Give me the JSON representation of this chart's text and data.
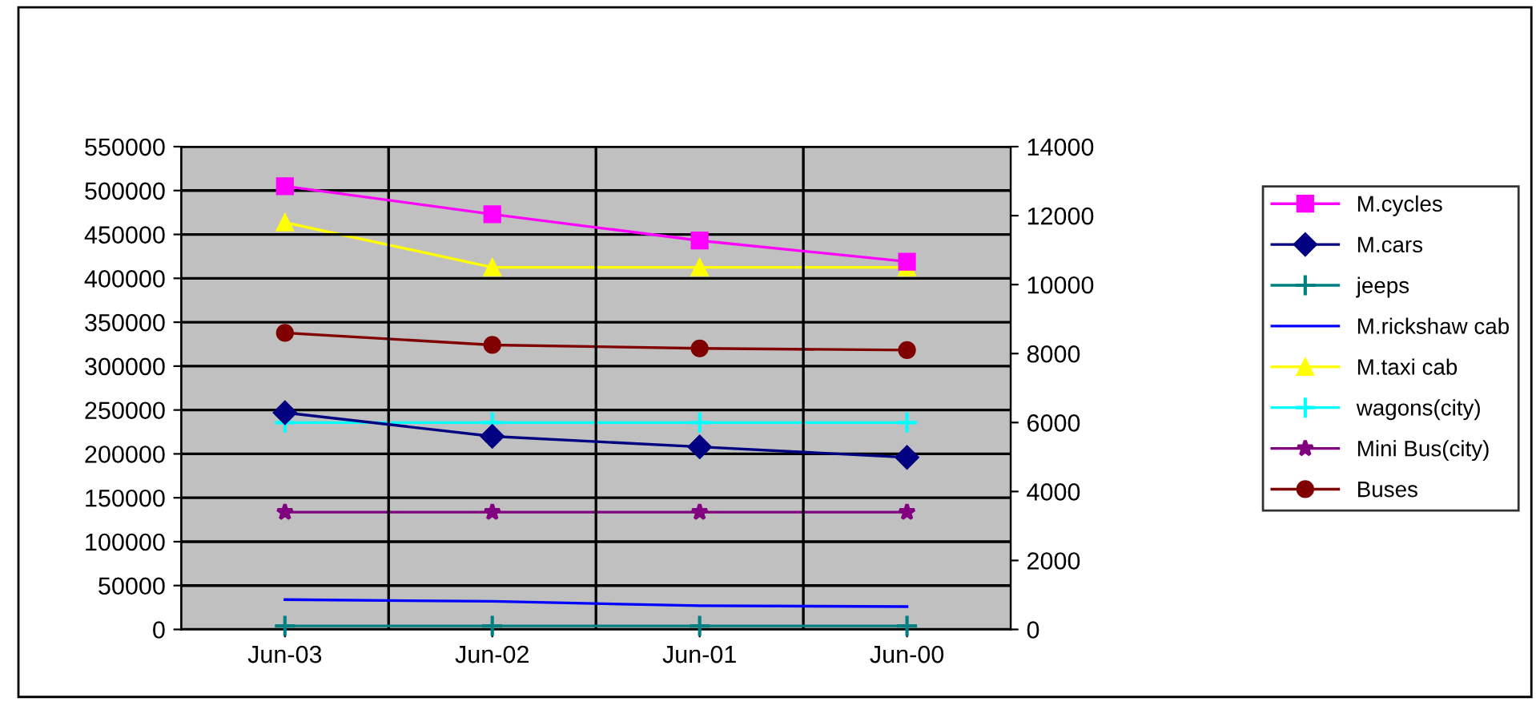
{
  "chart_data": {
    "type": "line",
    "categories": [
      "Jun-03",
      "Jun-02",
      "Jun-01",
      "Jun-00"
    ],
    "series": [
      {
        "name": "M.cycles",
        "color": "#ff00ff",
        "marker": "square",
        "values": [
          505000,
          473000,
          443000,
          419000
        ]
      },
      {
        "name": "M.cars",
        "color": "#000080",
        "marker": "diamond",
        "values": [
          247000,
          220000,
          208000,
          196000
        ]
      },
      {
        "name": "jeeps",
        "color": "#008080",
        "marker": "cross",
        "values": [
          4000,
          4000,
          4000,
          4000
        ]
      },
      {
        "name": "M.rickshaw cab",
        "color": "#0000ff",
        "marker": "none",
        "values": [
          34000,
          32000,
          27000,
          26000
        ]
      },
      {
        "name": "M.taxi cab",
        "color": "#ffff00",
        "marker": "triangle",
        "axis": "y2",
        "values": [
          11800,
          10500,
          10500,
          10500
        ]
      },
      {
        "name": "wagons(city)",
        "color": "#00ffff",
        "marker": "cross",
        "axis": "y2",
        "values": [
          6000,
          6000,
          6000,
          6000
        ]
      },
      {
        "name": "Mini Bus(city)",
        "color": "#800080",
        "marker": "star",
        "axis": "y2",
        "values": [
          3400,
          3400,
          3400,
          3400
        ]
      },
      {
        "name": "Buses",
        "color": "#800000",
        "marker": "circle",
        "axis": "y2",
        "values": [
          8600,
          8250,
          8150,
          8100
        ]
      }
    ],
    "ylim": [
      0,
      550000
    ],
    "yticks": [
      0,
      50000,
      100000,
      150000,
      200000,
      250000,
      300000,
      350000,
      400000,
      450000,
      500000,
      550000
    ],
    "y2lim": [
      0,
      14000
    ],
    "y2ticks": [
      0,
      2000,
      4000,
      6000,
      8000,
      10000,
      12000,
      14000
    ],
    "grid": true,
    "legend": "right",
    "line_style": "solid"
  }
}
